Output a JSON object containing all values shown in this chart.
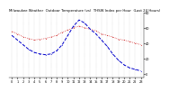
{
  "title": "Milwaukee Weather  Outdoor Temperature (vs)  THSW Index per Hour  (Last 24 Hours)",
  "hours": [
    0,
    1,
    2,
    3,
    4,
    5,
    6,
    7,
    8,
    9,
    10,
    11,
    12,
    13,
    14,
    15,
    16,
    17,
    18,
    19,
    20,
    21,
    22,
    23
  ],
  "temp": [
    55,
    52,
    48,
    46,
    44,
    45,
    46,
    48,
    50,
    54,
    57,
    60,
    62,
    60,
    58,
    56,
    52,
    50,
    48,
    45,
    44,
    42,
    40,
    38
  ],
  "thsw": [
    50,
    44,
    38,
    32,
    28,
    26,
    25,
    26,
    30,
    38,
    50,
    62,
    70,
    66,
    58,
    52,
    44,
    36,
    26,
    18,
    12,
    8,
    6,
    4
  ],
  "temp_color": "#cc0000",
  "thsw_color": "#0000cc",
  "bg_color": "#ffffff",
  "grid_color": "#888888",
  "ylim": [
    -5,
    80
  ],
  "ytick_vals": [
    0,
    20,
    40,
    60,
    80
  ],
  "ytick_labels": [
    "0",
    "20",
    "40",
    "60",
    "80"
  ],
  "title_fontsize": 2.8,
  "tick_fontsize": 2.5,
  "line_lw": 0.5,
  "marker_size": 1.0
}
